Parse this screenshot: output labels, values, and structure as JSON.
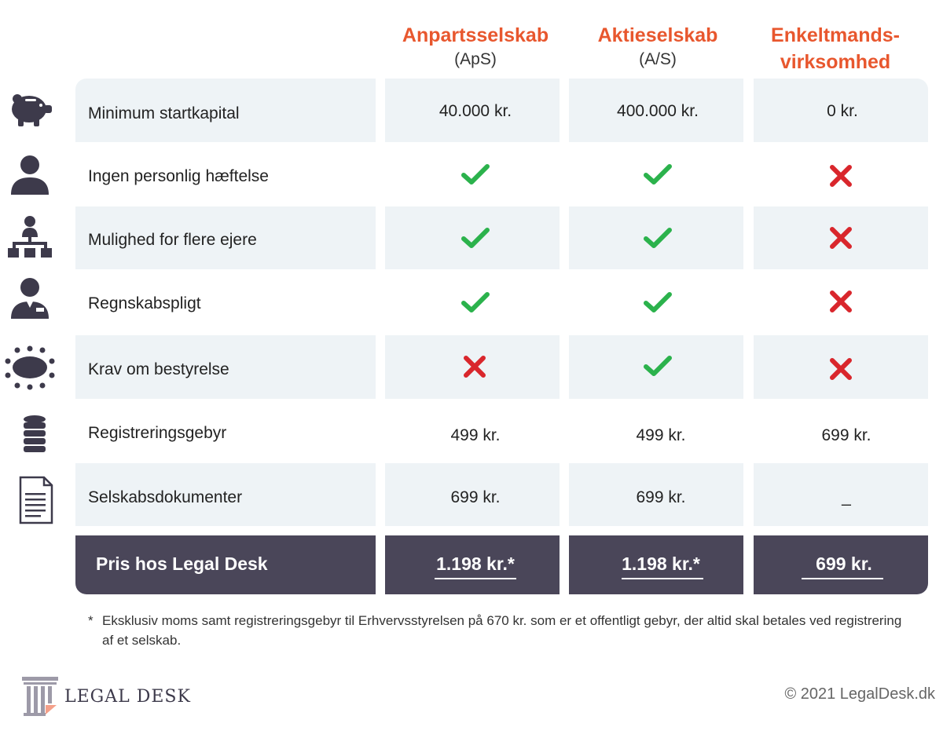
{
  "columns": [
    {
      "name": "Anpartsselskab",
      "sub": "(ApS)"
    },
    {
      "name": "Aktieselskab",
      "sub": "(A/S)"
    },
    {
      "name": "Enkeltmands-",
      "sub": "virksomhed"
    }
  ],
  "rows": [
    {
      "label": "Minimum startkapital",
      "icon": "piggy-bank-icon",
      "values": [
        "40.000 kr.",
        "400.000 kr.",
        "0 kr."
      ]
    },
    {
      "label": "Ingen personlig hæftelse",
      "icon": "person-icon",
      "values": [
        "check",
        "check",
        "cross"
      ]
    },
    {
      "label": "Mulighed for flere ejere",
      "icon": "org-chart-icon",
      "values": [
        "check",
        "check",
        "cross"
      ]
    },
    {
      "label": "Regnskabspligt",
      "icon": "businessman-icon",
      "values": [
        "check",
        "check",
        "cross"
      ]
    },
    {
      "label": "Krav om bestyrelse",
      "icon": "board-table-icon",
      "values": [
        "cross",
        "check",
        "cross"
      ]
    },
    {
      "label": "Registreringsgebyr",
      "icon": "coin-stack-icon",
      "values": [
        "499 kr.",
        "499 kr.",
        "699 kr."
      ]
    },
    {
      "label": "Selskabsdokumenter",
      "icon": "document-icon",
      "values": [
        "699 kr.",
        "699 kr.",
        "_"
      ]
    }
  ],
  "total": {
    "label": "Pris hos Legal Desk",
    "values": [
      "1.198 kr.*",
      "1.198 kr.*",
      "699 kr."
    ]
  },
  "footnote": {
    "star": "*",
    "text": "Eksklusiv moms samt registreringsgebyr til Erhvervsstyrelsen på 670 kr. som er et offentligt gebyr, der altid skal betales ved registrering af et selskab."
  },
  "brand": "LEGAL DESK",
  "copyright": "© 2021 LegalDesk.dk",
  "colors": {
    "accent": "#e8572e",
    "check": "#2bb24c",
    "cross": "#d9262c",
    "shade": "#eef3f6",
    "total": "#4a4659",
    "icon": "#3d3a4b"
  }
}
